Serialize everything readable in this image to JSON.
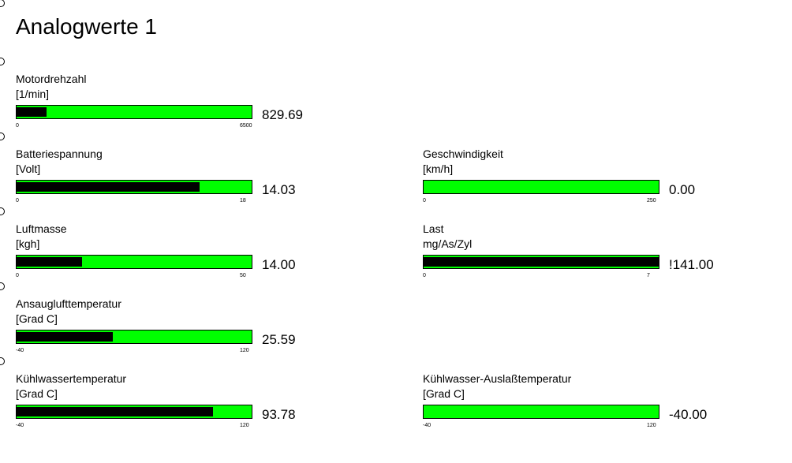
{
  "title": "Analogwerte 1",
  "gauges": [
    {
      "label": "Motordrehzahl",
      "unit": "[1/min]",
      "min": 0,
      "max": 6500,
      "value": 829.69
    },
    {
      "label": "Batteriespannung",
      "unit": "[Volt]",
      "min": 0,
      "max": 18,
      "value": 14.03
    },
    {
      "label": "Geschwindigkeit",
      "unit": "[km/h]",
      "min": 0,
      "max": 250,
      "value": 0,
      "value_label": "0.00"
    },
    {
      "label": "Luftmasse",
      "unit": "[kgh]",
      "min": 0,
      "max": 50,
      "value": 14,
      "value_label": "14.00"
    },
    {
      "label": "Last",
      "unit": "mg/As/Zyl",
      "min": 0,
      "max": 7,
      "value": 141,
      "value_label": "!141.00"
    },
    {
      "label": "Ansauglufttemperatur",
      "unit": "[Grad C]",
      "min": -40,
      "max": 120,
      "value": 25.59
    },
    {
      "label": "Kühlwassertemperatur",
      "unit": "[Grad C]",
      "min": -40,
      "max": 120,
      "value": 93.78
    },
    {
      "label": "Kühlwasser-Auslaßtemperatur",
      "unit": "[Grad C]",
      "min": -40,
      "max": 120,
      "value": -40,
      "value_label": "-40.00"
    }
  ]
}
